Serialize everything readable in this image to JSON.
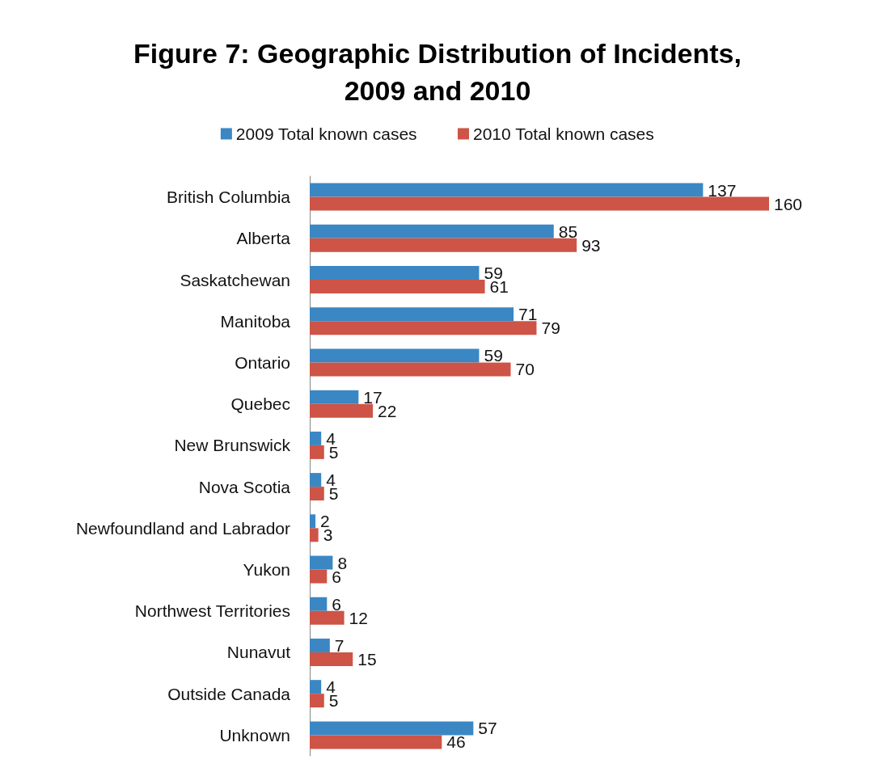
{
  "chart_data": {
    "type": "bar",
    "orientation": "horizontal",
    "title": "Figure 7: Geographic Distribution of Incidents,\n2009 and 2010",
    "categories": [
      "British Columbia",
      "Alberta",
      "Saskatchewan",
      "Manitoba",
      "Ontario",
      "Quebec",
      "New Brunswick",
      "Nova Scotia",
      "Newfoundland and Labrador",
      "Yukon",
      "Northwest Territories",
      "Nunavut",
      "Outside Canada",
      "Unknown"
    ],
    "series": [
      {
        "name": "2009 Total known cases",
        "color": "#3a87c4",
        "values": [
          137,
          85,
          59,
          71,
          59,
          17,
          4,
          4,
          2,
          8,
          6,
          7,
          4,
          57
        ]
      },
      {
        "name": "2010 Total known cases",
        "color": "#cd5446",
        "values": [
          160,
          93,
          61,
          79,
          70,
          22,
          5,
          5,
          3,
          6,
          12,
          15,
          5,
          46
        ]
      }
    ],
    "data_labels": true,
    "legend": "top",
    "grid": false
  }
}
